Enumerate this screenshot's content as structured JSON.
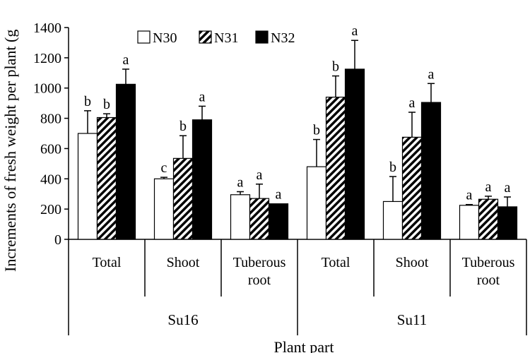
{
  "chart_data": {
    "type": "bar",
    "ylabel": "Increments of fresh weight per plant (g)",
    "ylabel_visible": "Increments of fresh weight per plant (g",
    "xlabel": "Plant part",
    "ylim": [
      0,
      1400
    ],
    "yticks": [
      0,
      200,
      400,
      600,
      800,
      1000,
      1200,
      1400
    ],
    "legend_position": "top-center",
    "series": [
      {
        "name": "N30",
        "pattern": "white"
      },
      {
        "name": "N31",
        "pattern": "diagonal-hatch"
      },
      {
        "name": "N32",
        "pattern": "black"
      }
    ],
    "groups": [
      {
        "label": [
          "Total"
        ],
        "site": "Su16",
        "values": [
          700,
          805,
          1025
        ],
        "errors": [
          150,
          25,
          100
        ],
        "letters": [
          "b",
          "b",
          "a"
        ]
      },
      {
        "label": [
          "Shoot"
        ],
        "site": "Su16",
        "values": [
          400,
          535,
          790
        ],
        "errors": [
          10,
          150,
          90
        ],
        "letters": [
          "c",
          "b",
          "a"
        ]
      },
      {
        "label": [
          "Tuberous",
          "root"
        ],
        "site": "Su16",
        "values": [
          295,
          270,
          235
        ],
        "errors": [
          20,
          95,
          0
        ],
        "letters": [
          "a",
          "a",
          "a"
        ]
      },
      {
        "label": [
          "Total"
        ],
        "site": "Su11",
        "values": [
          480,
          940,
          1125
        ],
        "errors": [
          180,
          140,
          190
        ],
        "letters": [
          "b",
          "b",
          "a"
        ]
      },
      {
        "label": [
          "Shoot"
        ],
        "site": "Su11",
        "values": [
          250,
          675,
          905
        ],
        "errors": [
          165,
          165,
          125
        ],
        "letters": [
          "b",
          "a",
          "a"
        ]
      },
      {
        "label": [
          "Tuberous",
          "root"
        ],
        "site": "Su11",
        "values": [
          225,
          265,
          215
        ],
        "errors": [
          5,
          20,
          65
        ],
        "letters": [
          "a",
          "a",
          "a"
        ]
      }
    ],
    "sites": [
      "Su16",
      "Su11"
    ]
  },
  "colors": {
    "axis": "#000000",
    "fill_white": "#ffffff",
    "fill_black": "#000000"
  }
}
